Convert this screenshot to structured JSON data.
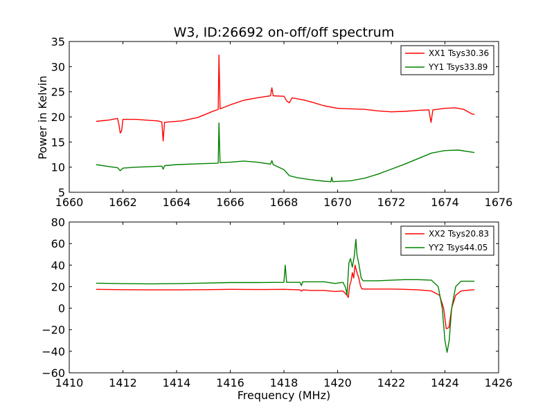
{
  "figure": {
    "title": "W3, ID:26692 on-off/off spectrum",
    "ylabel": "Power in Kelvin",
    "xlabel": "Frequency (MHz)"
  },
  "chart_data": [
    {
      "type": "line",
      "title": "W3, ID:26692 on-off/off spectrum",
      "xlabel": "",
      "ylabel": "Power in Kelvin",
      "xlim": [
        1660,
        1676
      ],
      "ylim": [
        5,
        35
      ],
      "xticks": [
        1660,
        1662,
        1664,
        1666,
        1668,
        1670,
        1672,
        1674,
        1676
      ],
      "yticks": [
        5,
        10,
        15,
        20,
        25,
        30,
        35
      ],
      "legend": "top-right",
      "series": [
        {
          "name": "XX1 Tsys30.36",
          "color": "#ff0000",
          "points": [
            [
              1661.0,
              19.1
            ],
            [
              1661.5,
              19.4
            ],
            [
              1661.8,
              19.7
            ],
            [
              1661.85,
              18.5
            ],
            [
              1661.9,
              16.8
            ],
            [
              1661.95,
              17.2
            ],
            [
              1662.0,
              19.5
            ],
            [
              1662.5,
              19.5
            ],
            [
              1663.0,
              19.3
            ],
            [
              1663.3,
              19.2
            ],
            [
              1663.45,
              19.0
            ],
            [
              1663.5,
              15.2
            ],
            [
              1663.55,
              18.9
            ],
            [
              1663.7,
              19.0
            ],
            [
              1664.2,
              19.2
            ],
            [
              1664.8,
              19.9
            ],
            [
              1665.3,
              21.0
            ],
            [
              1665.55,
              21.5
            ],
            [
              1665.58,
              32.3
            ],
            [
              1665.62,
              21.6
            ],
            [
              1666.0,
              22.4
            ],
            [
              1666.5,
              23.3
            ],
            [
              1667.0,
              23.8
            ],
            [
              1667.5,
              24.2
            ],
            [
              1667.55,
              25.8
            ],
            [
              1667.6,
              24.2
            ],
            [
              1668.0,
              24.1
            ],
            [
              1668.1,
              23.2
            ],
            [
              1668.2,
              22.8
            ],
            [
              1668.3,
              23.8
            ],
            [
              1668.7,
              23.4
            ],
            [
              1669.0,
              23.0
            ],
            [
              1669.5,
              22.2
            ],
            [
              1670.0,
              21.7
            ],
            [
              1670.5,
              21.6
            ],
            [
              1671.0,
              21.5
            ],
            [
              1671.5,
              21.2
            ],
            [
              1672.0,
              21.0
            ],
            [
              1672.5,
              21.1
            ],
            [
              1673.0,
              21.3
            ],
            [
              1673.4,
              21.4
            ],
            [
              1673.48,
              18.9
            ],
            [
              1673.55,
              21.4
            ],
            [
              1674.0,
              21.7
            ],
            [
              1674.4,
              21.8
            ],
            [
              1674.7,
              21.5
            ],
            [
              1675.0,
              20.6
            ],
            [
              1675.1,
              20.5
            ]
          ]
        },
        {
          "name": "YY1 Tsys33.89",
          "color": "#008000",
          "points": [
            [
              1661.0,
              10.5
            ],
            [
              1661.5,
              10.1
            ],
            [
              1661.8,
              9.9
            ],
            [
              1661.9,
              9.3
            ],
            [
              1662.0,
              9.8
            ],
            [
              1662.5,
              10.0
            ],
            [
              1663.0,
              10.1
            ],
            [
              1663.45,
              10.2
            ],
            [
              1663.5,
              9.6
            ],
            [
              1663.55,
              10.3
            ],
            [
              1664.0,
              10.5
            ],
            [
              1665.0,
              10.7
            ],
            [
              1665.55,
              10.8
            ],
            [
              1665.58,
              18.8
            ],
            [
              1665.62,
              10.9
            ],
            [
              1666.0,
              11.0
            ],
            [
              1666.5,
              11.2
            ],
            [
              1667.0,
              11.0
            ],
            [
              1667.5,
              10.6
            ],
            [
              1667.55,
              11.3
            ],
            [
              1667.6,
              10.5
            ],
            [
              1668.0,
              9.5
            ],
            [
              1668.2,
              8.3
            ],
            [
              1668.5,
              7.9
            ],
            [
              1669.0,
              7.5
            ],
            [
              1669.5,
              7.2
            ],
            [
              1669.75,
              7.1
            ],
            [
              1669.78,
              8.0
            ],
            [
              1669.82,
              7.1
            ],
            [
              1670.5,
              7.3
            ],
            [
              1671.0,
              7.8
            ],
            [
              1671.5,
              8.6
            ],
            [
              1672.0,
              9.6
            ],
            [
              1672.5,
              10.6
            ],
            [
              1673.0,
              11.7
            ],
            [
              1673.5,
              12.8
            ],
            [
              1674.0,
              13.3
            ],
            [
              1674.5,
              13.4
            ],
            [
              1675.0,
              13.0
            ],
            [
              1675.1,
              12.9
            ]
          ]
        }
      ]
    },
    {
      "type": "line",
      "title": "",
      "xlabel": "Frequency (MHz)",
      "ylabel": "",
      "xlim": [
        1410,
        1426
      ],
      "ylim": [
        -60,
        80
      ],
      "xticks": [
        1410,
        1412,
        1414,
        1416,
        1418,
        1420,
        1422,
        1424,
        1426
      ],
      "yticks": [
        -60,
        -40,
        -20,
        0,
        20,
        40,
        60,
        80
      ],
      "legend": "top-right",
      "series": [
        {
          "name": "XX2 Tsys20.83",
          "color": "#ff0000",
          "points": [
            [
              1411.0,
              17.5
            ],
            [
              1412.0,
              17.2
            ],
            [
              1413.0,
              17.0
            ],
            [
              1414.0,
              17.0
            ],
            [
              1415.0,
              17.2
            ],
            [
              1416.0,
              17.5
            ],
            [
              1417.0,
              17.3
            ],
            [
              1418.0,
              17.5
            ],
            [
              1418.6,
              17.0
            ],
            [
              1418.65,
              15.8
            ],
            [
              1418.7,
              17.0
            ],
            [
              1419.0,
              16.5
            ],
            [
              1419.5,
              16.5
            ],
            [
              1419.9,
              15.5
            ],
            [
              1420.2,
              16.0
            ],
            [
              1420.35,
              12.0
            ],
            [
              1420.4,
              10.0
            ],
            [
              1420.45,
              21.0
            ],
            [
              1420.5,
              25.0
            ],
            [
              1420.55,
              33.0
            ],
            [
              1420.6,
              28.0
            ],
            [
              1420.65,
              40.0
            ],
            [
              1420.7,
              35.0
            ],
            [
              1420.75,
              31.0
            ],
            [
              1420.8,
              27.0
            ],
            [
              1420.85,
              21.0
            ],
            [
              1420.9,
              18.0
            ],
            [
              1421.0,
              17.8
            ],
            [
              1422.0,
              17.8
            ],
            [
              1422.5,
              17.5
            ],
            [
              1423.0,
              17.0
            ],
            [
              1423.5,
              16.0
            ],
            [
              1423.8,
              12.0
            ],
            [
              1423.95,
              0.0
            ],
            [
              1424.05,
              -19.0
            ],
            [
              1424.15,
              -18.0
            ],
            [
              1424.25,
              0.0
            ],
            [
              1424.4,
              12.0
            ],
            [
              1424.6,
              16.0
            ],
            [
              1425.0,
              17.0
            ],
            [
              1425.1,
              17.0
            ]
          ]
        },
        {
          "name": "YY2 Tsys44.05",
          "color": "#008000",
          "points": [
            [
              1411.0,
              23.2
            ],
            [
              1412.0,
              22.8
            ],
            [
              1413.0,
              22.6
            ],
            [
              1414.0,
              22.8
            ],
            [
              1415.0,
              23.3
            ],
            [
              1416.0,
              23.8
            ],
            [
              1417.0,
              23.8
            ],
            [
              1418.0,
              24.0
            ],
            [
              1418.05,
              40.0
            ],
            [
              1418.1,
              24.0
            ],
            [
              1418.6,
              24.0
            ],
            [
              1418.65,
              21.0
            ],
            [
              1418.7,
              24.5
            ],
            [
              1419.5,
              24.5
            ],
            [
              1419.9,
              23.0
            ],
            [
              1420.2,
              24.0
            ],
            [
              1420.3,
              19.0
            ],
            [
              1420.35,
              12.5
            ],
            [
              1420.42,
              42.0
            ],
            [
              1420.48,
              46.0
            ],
            [
              1420.55,
              38.0
            ],
            [
              1420.62,
              48.0
            ],
            [
              1420.68,
              64.0
            ],
            [
              1420.72,
              50.0
            ],
            [
              1420.8,
              40.0
            ],
            [
              1420.88,
              28.0
            ],
            [
              1420.95,
              25.5
            ],
            [
              1421.5,
              25.5
            ],
            [
              1422.0,
              26.0
            ],
            [
              1422.5,
              26.5
            ],
            [
              1423.0,
              26.5
            ],
            [
              1423.5,
              26.0
            ],
            [
              1423.75,
              20.0
            ],
            [
              1423.9,
              0.0
            ],
            [
              1424.0,
              -30.0
            ],
            [
              1424.08,
              -41.0
            ],
            [
              1424.16,
              -30.0
            ],
            [
              1424.25,
              0.0
            ],
            [
              1424.4,
              20.0
            ],
            [
              1424.6,
              25.0
            ],
            [
              1425.0,
              25.0
            ],
            [
              1425.1,
              25.0
            ]
          ]
        }
      ]
    }
  ]
}
